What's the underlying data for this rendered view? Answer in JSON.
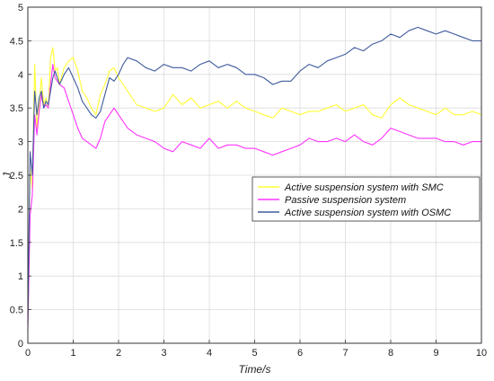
{
  "chart_data": {
    "type": "line",
    "title": "",
    "xlabel": "Time/s",
    "ylabel": "J",
    "xlim": [
      0,
      10
    ],
    "ylim": [
      0,
      5
    ],
    "xticks": [
      "0",
      "1",
      "2",
      "3",
      "4",
      "5",
      "6",
      "7",
      "8",
      "9",
      "10"
    ],
    "yticks": [
      "0",
      "0.5",
      "1",
      "1.5",
      "2",
      "2.5",
      "3",
      "3.5",
      "4",
      "4.5",
      "5"
    ],
    "grid": true,
    "legend_position": "right",
    "series": [
      {
        "name": "Active suspension system with SMC",
        "color": "#ffff33",
        "x": [
          0,
          0.05,
          0.1,
          0.15,
          0.2,
          0.25,
          0.3,
          0.35,
          0.4,
          0.45,
          0.5,
          0.55,
          0.6,
          0.65,
          0.7,
          0.8,
          0.9,
          1.0,
          1.1,
          1.2,
          1.3,
          1.4,
          1.5,
          1.6,
          1.7,
          1.8,
          1.9,
          2.0,
          2.2,
          2.4,
          2.6,
          2.8,
          3.0,
          3.2,
          3.4,
          3.6,
          3.8,
          4.0,
          4.2,
          4.4,
          4.6,
          4.8,
          5.0,
          5.2,
          5.4,
          5.6,
          5.8,
          6.0,
          6.2,
          6.4,
          6.6,
          6.8,
          7.0,
          7.2,
          7.4,
          7.6,
          7.8,
          8.0,
          8.2,
          8.4,
          8.6,
          8.8,
          9.0,
          9.2,
          9.4,
          9.6,
          9.8,
          10.0
        ],
        "y": [
          0.3,
          2.6,
          2.3,
          4.15,
          3.2,
          3.55,
          3.95,
          3.55,
          3.65,
          3.5,
          4.25,
          4.4,
          4.05,
          4.1,
          3.85,
          4.1,
          4.2,
          4.25,
          4.05,
          3.75,
          3.65,
          3.5,
          3.4,
          3.7,
          3.85,
          4.05,
          4.1,
          3.95,
          3.75,
          3.55,
          3.5,
          3.45,
          3.5,
          3.7,
          3.55,
          3.65,
          3.5,
          3.55,
          3.6,
          3.5,
          3.6,
          3.5,
          3.45,
          3.4,
          3.35,
          3.5,
          3.45,
          3.4,
          3.45,
          3.45,
          3.5,
          3.55,
          3.45,
          3.5,
          3.55,
          3.4,
          3.35,
          3.55,
          3.65,
          3.55,
          3.5,
          3.45,
          3.4,
          3.5,
          3.4,
          3.4,
          3.45,
          3.4
        ]
      },
      {
        "name": "Passive suspension system",
        "color": "#ff33ff",
        "x": [
          0,
          0.05,
          0.1,
          0.15,
          0.2,
          0.25,
          0.3,
          0.35,
          0.4,
          0.45,
          0.5,
          0.55,
          0.6,
          0.7,
          0.8,
          0.9,
          1.0,
          1.1,
          1.2,
          1.3,
          1.4,
          1.5,
          1.6,
          1.7,
          1.8,
          1.9,
          2.0,
          2.2,
          2.4,
          2.6,
          2.8,
          3.0,
          3.2,
          3.4,
          3.6,
          3.8,
          4.0,
          4.2,
          4.4,
          4.6,
          4.8,
          5.0,
          5.2,
          5.4,
          5.6,
          5.8,
          6.0,
          6.2,
          6.4,
          6.6,
          6.8,
          7.0,
          7.2,
          7.4,
          7.6,
          7.8,
          8.0,
          8.2,
          8.4,
          8.6,
          8.8,
          9.0,
          9.2,
          9.4,
          9.6,
          9.8,
          10.0
        ],
        "y": [
          0.2,
          1.9,
          2.2,
          3.4,
          3.1,
          3.45,
          3.7,
          3.5,
          3.55,
          3.5,
          3.85,
          4.15,
          3.95,
          3.85,
          3.8,
          3.6,
          3.4,
          3.2,
          3.05,
          3.0,
          2.95,
          2.9,
          3.05,
          3.3,
          3.4,
          3.5,
          3.4,
          3.2,
          3.1,
          3.05,
          3.0,
          2.9,
          2.85,
          3.0,
          2.95,
          2.9,
          3.05,
          2.9,
          2.95,
          2.95,
          2.9,
          2.9,
          2.85,
          2.8,
          2.85,
          2.9,
          2.95,
          3.05,
          3.0,
          3.0,
          3.05,
          3.0,
          3.1,
          3.0,
          2.95,
          3.05,
          3.2,
          3.15,
          3.1,
          3.05,
          3.05,
          3.05,
          3.0,
          3.0,
          2.95,
          3.0,
          3.0
        ]
      },
      {
        "name": "Active suspension system with OSMC",
        "color": "#3f5b9c",
        "x": [
          0,
          0.05,
          0.1,
          0.15,
          0.2,
          0.25,
          0.3,
          0.35,
          0.4,
          0.45,
          0.5,
          0.55,
          0.6,
          0.7,
          0.8,
          0.9,
          1.0,
          1.1,
          1.2,
          1.3,
          1.4,
          1.5,
          1.6,
          1.7,
          1.8,
          1.9,
          2.0,
          2.1,
          2.2,
          2.4,
          2.6,
          2.8,
          3.0,
          3.2,
          3.4,
          3.6,
          3.8,
          4.0,
          4.2,
          4.4,
          4.6,
          4.8,
          5.0,
          5.2,
          5.4,
          5.6,
          5.8,
          6.0,
          6.2,
          6.4,
          6.6,
          6.8,
          7.0,
          7.2,
          7.4,
          7.6,
          7.8,
          8.0,
          8.2,
          8.4,
          8.6,
          8.8,
          9.0,
          9.2,
          9.4,
          9.6,
          9.8,
          10.0
        ],
        "y": [
          0.3,
          2.85,
          2.5,
          3.75,
          3.4,
          3.65,
          3.75,
          3.5,
          3.6,
          3.55,
          3.75,
          3.95,
          4.05,
          3.85,
          4.0,
          4.1,
          3.95,
          3.8,
          3.6,
          3.5,
          3.4,
          3.35,
          3.45,
          3.7,
          3.95,
          3.9,
          4.0,
          4.15,
          4.25,
          4.2,
          4.1,
          4.05,
          4.15,
          4.1,
          4.1,
          4.05,
          4.15,
          4.2,
          4.1,
          4.15,
          4.1,
          4.0,
          4.0,
          3.95,
          3.85,
          3.9,
          3.9,
          4.05,
          4.15,
          4.1,
          4.2,
          4.25,
          4.3,
          4.4,
          4.35,
          4.45,
          4.5,
          4.6,
          4.55,
          4.65,
          4.7,
          4.65,
          4.6,
          4.65,
          4.6,
          4.55,
          4.5,
          4.5
        ]
      }
    ]
  }
}
